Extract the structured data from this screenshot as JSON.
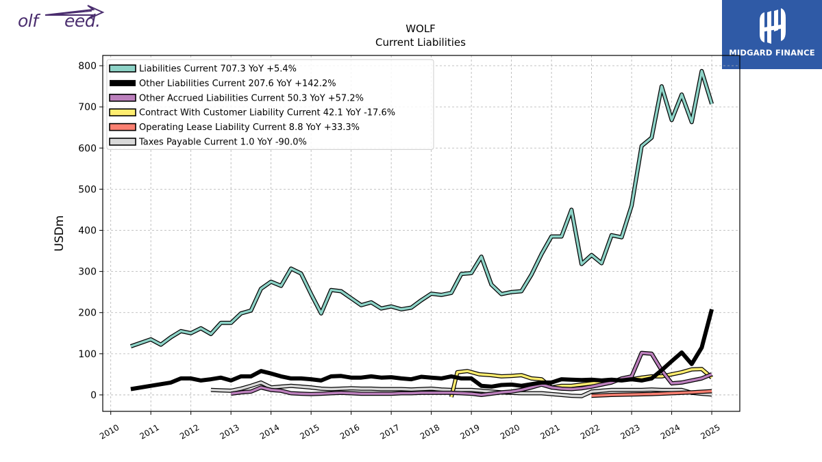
{
  "branding": {
    "left_logo_text_1": "olf",
    "left_logo_text_2": "eed.",
    "left_logo_color": "#4a2d6e",
    "right_logo_name": "MIDGARD FINANCE",
    "right_logo_bg": "#2f5aa6"
  },
  "chart_data": {
    "type": "line",
    "title": "WOLF",
    "subtitle": "Current  Liabilities",
    "xlabel": "",
    "ylabel": "USDm",
    "xlim": [
      2009.8,
      2025.7
    ],
    "ylim": [
      -40,
      825
    ],
    "x_ticks": [
      2010,
      2011,
      2012,
      2013,
      2014,
      2015,
      2016,
      2017,
      2018,
      2019,
      2020,
      2021,
      2022,
      2023,
      2024,
      2025
    ],
    "x_tick_labels": [
      "2010",
      "2011",
      "2012",
      "2013",
      "2014",
      "2015",
      "2016",
      "2017",
      "2018",
      "2019",
      "2020",
      "2021",
      "2022",
      "2023",
      "2024",
      "2025"
    ],
    "y_ticks": [
      0,
      100,
      200,
      300,
      400,
      500,
      600,
      700,
      800
    ],
    "y_tick_labels": [
      "0",
      "100",
      "200",
      "300",
      "400",
      "500",
      "600",
      "700",
      "800"
    ],
    "grid": true,
    "legend_position": "top-left",
    "series": [
      {
        "name": "Liabilities Current  707.3 YoY +5.4%",
        "color": "#8dd3c7",
        "width": 3.5,
        "points": [
          [
            2010.5,
            118
          ],
          [
            2011.0,
            135
          ],
          [
            2011.25,
            122
          ],
          [
            2011.5,
            140
          ],
          [
            2011.75,
            155
          ],
          [
            2012.0,
            150
          ],
          [
            2012.25,
            162
          ],
          [
            2012.5,
            148
          ],
          [
            2012.75,
            175
          ],
          [
            2013.0,
            175
          ],
          [
            2013.25,
            198
          ],
          [
            2013.5,
            205
          ],
          [
            2013.75,
            258
          ],
          [
            2014.0,
            275
          ],
          [
            2014.25,
            265
          ],
          [
            2014.5,
            307
          ],
          [
            2014.75,
            295
          ],
          [
            2015.0,
            245
          ],
          [
            2015.25,
            198
          ],
          [
            2015.5,
            255
          ],
          [
            2015.75,
            252
          ],
          [
            2016.0,
            235
          ],
          [
            2016.25,
            218
          ],
          [
            2016.5,
            225
          ],
          [
            2016.75,
            210
          ],
          [
            2017.0,
            215
          ],
          [
            2017.25,
            208
          ],
          [
            2017.5,
            212
          ],
          [
            2017.75,
            230
          ],
          [
            2018.0,
            246
          ],
          [
            2018.25,
            243
          ],
          [
            2018.5,
            248
          ],
          [
            2018.75,
            294
          ],
          [
            2019.0,
            296
          ],
          [
            2019.25,
            336
          ],
          [
            2019.5,
            268
          ],
          [
            2019.75,
            245
          ],
          [
            2020.0,
            250
          ],
          [
            2020.25,
            252
          ],
          [
            2020.5,
            292
          ],
          [
            2020.75,
            342
          ],
          [
            2021.0,
            385
          ],
          [
            2021.25,
            385
          ],
          [
            2021.5,
            450
          ],
          [
            2021.75,
            318
          ],
          [
            2022.0,
            340
          ],
          [
            2022.25,
            320
          ],
          [
            2022.5,
            388
          ],
          [
            2022.75,
            383
          ],
          [
            2023.0,
            460
          ],
          [
            2023.25,
            605
          ],
          [
            2023.5,
            625
          ],
          [
            2023.75,
            750
          ],
          [
            2024.0,
            668
          ],
          [
            2024.25,
            730
          ],
          [
            2024.5,
            663
          ],
          [
            2024.75,
            787
          ],
          [
            2025.0,
            707
          ]
        ]
      },
      {
        "name": "Other Liabilities Current  207.6 YoY +142.2%",
        "color": "#000000",
        "width": 6,
        "points": [
          [
            2010.5,
            14
          ],
          [
            2011.0,
            22
          ],
          [
            2011.25,
            26
          ],
          [
            2011.5,
            30
          ],
          [
            2011.75,
            40
          ],
          [
            2012.0,
            40
          ],
          [
            2012.25,
            35
          ],
          [
            2012.5,
            38
          ],
          [
            2012.75,
            42
          ],
          [
            2013.0,
            35
          ],
          [
            2013.25,
            45
          ],
          [
            2013.5,
            45
          ],
          [
            2013.75,
            58
          ],
          [
            2014.0,
            52
          ],
          [
            2014.25,
            45
          ],
          [
            2014.5,
            40
          ],
          [
            2014.75,
            40
          ],
          [
            2015.0,
            38
          ],
          [
            2015.25,
            35
          ],
          [
            2015.5,
            45
          ],
          [
            2015.75,
            46
          ],
          [
            2016.0,
            42
          ],
          [
            2016.25,
            42
          ],
          [
            2016.5,
            45
          ],
          [
            2016.75,
            42
          ],
          [
            2017.0,
            43
          ],
          [
            2017.25,
            40
          ],
          [
            2017.5,
            38
          ],
          [
            2017.75,
            44
          ],
          [
            2018.0,
            42
          ],
          [
            2018.25,
            40
          ],
          [
            2018.5,
            45
          ],
          [
            2018.75,
            40
          ],
          [
            2019.0,
            40
          ],
          [
            2019.25,
            22
          ],
          [
            2019.5,
            20
          ],
          [
            2019.75,
            24
          ],
          [
            2020.0,
            25
          ],
          [
            2020.25,
            22
          ],
          [
            2020.5,
            26
          ],
          [
            2020.75,
            30
          ],
          [
            2021.0,
            30
          ],
          [
            2021.25,
            38
          ],
          [
            2021.5,
            37
          ],
          [
            2021.75,
            36
          ],
          [
            2022.0,
            37
          ],
          [
            2022.25,
            35
          ],
          [
            2022.5,
            37
          ],
          [
            2022.75,
            35
          ],
          [
            2023.0,
            38
          ],
          [
            2023.25,
            35
          ],
          [
            2023.5,
            40
          ],
          [
            2023.75,
            60
          ],
          [
            2024.0,
            82
          ],
          [
            2024.25,
            103
          ],
          [
            2024.5,
            75
          ],
          [
            2024.75,
            115
          ],
          [
            2025.0,
            208
          ]
        ]
      },
      {
        "name": "Other Accrued Liabilities Current  50.3 YoY +57.2%",
        "color": "#bc80bd",
        "width": 3.5,
        "points": [
          [
            2013.0,
            3
          ],
          [
            2013.25,
            6
          ],
          [
            2013.5,
            8
          ],
          [
            2013.75,
            18
          ],
          [
            2014.0,
            12
          ],
          [
            2014.25,
            10
          ],
          [
            2014.5,
            4
          ],
          [
            2014.75,
            3
          ],
          [
            2015.0,
            2
          ],
          [
            2015.25,
            3
          ],
          [
            2015.5,
            4
          ],
          [
            2015.75,
            5
          ],
          [
            2016.0,
            4
          ],
          [
            2016.25,
            3
          ],
          [
            2016.5,
            3
          ],
          [
            2016.75,
            3
          ],
          [
            2017.0,
            3
          ],
          [
            2017.25,
            4
          ],
          [
            2017.5,
            4
          ],
          [
            2017.75,
            5
          ],
          [
            2018.0,
            5
          ],
          [
            2018.25,
            5
          ],
          [
            2018.5,
            5
          ],
          [
            2018.75,
            4
          ],
          [
            2019.0,
            3
          ],
          [
            2019.25,
            0
          ],
          [
            2019.5,
            3
          ],
          [
            2019.75,
            6
          ],
          [
            2020.0,
            8
          ],
          [
            2020.25,
            12
          ],
          [
            2020.5,
            18
          ],
          [
            2020.75,
            25
          ],
          [
            2021.0,
            18
          ],
          [
            2021.25,
            15
          ],
          [
            2021.5,
            14
          ],
          [
            2021.75,
            16
          ],
          [
            2022.0,
            20
          ],
          [
            2022.25,
            25
          ],
          [
            2022.5,
            30
          ],
          [
            2022.75,
            40
          ],
          [
            2023.0,
            45
          ],
          [
            2023.25,
            102
          ],
          [
            2023.5,
            100
          ],
          [
            2023.75,
            60
          ],
          [
            2024.0,
            28
          ],
          [
            2024.25,
            30
          ],
          [
            2024.5,
            35
          ],
          [
            2024.75,
            40
          ],
          [
            2025.0,
            50
          ]
        ]
      },
      {
        "name": "Contract With Customer Liability Current  42.1 YoY -17.6%",
        "color": "#ffed6f",
        "width": 3.5,
        "points": [
          [
            2018.5,
            -5
          ],
          [
            2018.65,
            55
          ],
          [
            2018.9,
            58
          ],
          [
            2019.2,
            50
          ],
          [
            2019.5,
            48
          ],
          [
            2019.75,
            45
          ],
          [
            2020.0,
            46
          ],
          [
            2020.25,
            48
          ],
          [
            2020.5,
            40
          ],
          [
            2020.75,
            38
          ],
          [
            2021.0,
            18
          ],
          [
            2021.25,
            22
          ],
          [
            2021.5,
            22
          ],
          [
            2021.75,
            25
          ],
          [
            2022.0,
            28
          ],
          [
            2022.25,
            30
          ],
          [
            2022.5,
            32
          ],
          [
            2022.75,
            38
          ],
          [
            2023.0,
            38
          ],
          [
            2023.25,
            42
          ],
          [
            2023.5,
            45
          ],
          [
            2023.75,
            45
          ],
          [
            2024.0,
            50
          ],
          [
            2024.25,
            55
          ],
          [
            2024.5,
            62
          ],
          [
            2024.75,
            63
          ],
          [
            2025.0,
            42
          ]
        ]
      },
      {
        "name": "Operating Lease Liability Current  8.8 YoY +33.3%",
        "color": "#fb8072",
        "width": 3.5,
        "points": [
          [
            2022.0,
            -2
          ],
          [
            2022.5,
            0
          ],
          [
            2023.0,
            1
          ],
          [
            2023.5,
            2
          ],
          [
            2024.0,
            4
          ],
          [
            2024.5,
            6
          ],
          [
            2025.0,
            9
          ]
        ]
      },
      {
        "name": "Taxes Payable Current  1.0 YoY -90.0%",
        "color": "#d9d9d9",
        "width": 3.5,
        "points": [
          [
            2012.5,
            12
          ],
          [
            2013.0,
            10
          ],
          [
            2013.25,
            15
          ],
          [
            2013.5,
            22
          ],
          [
            2013.75,
            30
          ],
          [
            2014.0,
            18
          ],
          [
            2014.25,
            20
          ],
          [
            2014.5,
            22
          ],
          [
            2014.75,
            20
          ],
          [
            2015.0,
            18
          ],
          [
            2015.25,
            15
          ],
          [
            2015.5,
            14
          ],
          [
            2015.75,
            15
          ],
          [
            2016.0,
            16
          ],
          [
            2016.25,
            15
          ],
          [
            2016.5,
            15
          ],
          [
            2016.75,
            14
          ],
          [
            2017.0,
            14
          ],
          [
            2017.25,
            14
          ],
          [
            2017.5,
            13
          ],
          [
            2017.75,
            14
          ],
          [
            2018.0,
            15
          ],
          [
            2018.25,
            13
          ],
          [
            2018.5,
            12
          ],
          [
            2018.75,
            12
          ],
          [
            2019.0,
            12
          ],
          [
            2019.25,
            10
          ],
          [
            2019.5,
            8
          ],
          [
            2019.75,
            6
          ],
          [
            2020.0,
            5
          ],
          [
            2020.25,
            4
          ],
          [
            2020.5,
            4
          ],
          [
            2020.75,
            4
          ],
          [
            2021.0,
            2
          ],
          [
            2021.25,
            0
          ],
          [
            2021.5,
            -2
          ],
          [
            2021.75,
            -3
          ],
          [
            2022.0,
            8
          ],
          [
            2022.25,
            10
          ],
          [
            2022.5,
            12
          ],
          [
            2022.75,
            12
          ],
          [
            2023.0,
            12
          ],
          [
            2023.25,
            12
          ],
          [
            2023.5,
            13
          ],
          [
            2023.75,
            12
          ],
          [
            2024.0,
            12
          ],
          [
            2024.25,
            12
          ],
          [
            2024.5,
            5
          ],
          [
            2024.75,
            3
          ],
          [
            2025.0,
            1
          ]
        ]
      }
    ]
  }
}
